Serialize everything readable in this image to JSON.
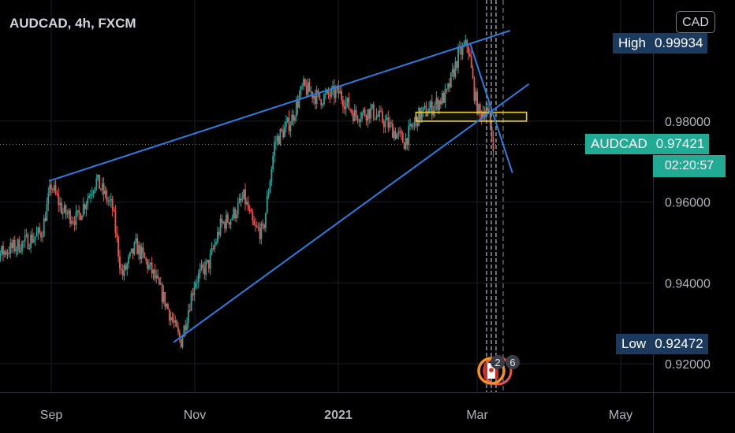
{
  "header": {
    "symbol_title": "AUDCAD, 4h, FXCM",
    "currency_button": "CAD"
  },
  "price_tags": {
    "high": {
      "label": "High",
      "value": "0.99934"
    },
    "low": {
      "label": "Low",
      "value": "0.92472"
    },
    "current": {
      "label": "AUDCAD",
      "value": "0.97421",
      "countdown": "02:20:57"
    }
  },
  "events": {
    "count_badge": "2",
    "count_badge_2": "6"
  },
  "colors": {
    "background": "#000000",
    "up": "#26a69a",
    "down": "#ef5350",
    "trendline": "#2a7de1",
    "zone": "#f5d030",
    "price_line": "#22ab94"
  },
  "chart_data": {
    "type": "candlestick",
    "symbol": "AUDCAD",
    "timeframe": "4h",
    "source": "FXCM",
    "x_ticks": [
      "Sep",
      "Nov",
      "2021",
      "Mar",
      "May"
    ],
    "y_ticks": [
      "0.92000",
      "0.94000",
      "0.96000",
      "0.98000"
    ],
    "ylim": [
      0.9135,
      1.0045
    ],
    "grid": true,
    "last_price": 0.97421,
    "high": 0.99934,
    "low": 0.92472,
    "close_path": [
      {
        "date": "2020-08-01",
        "price": 0.9515
      },
      {
        "date": "2020-08-10",
        "price": 0.9472
      },
      {
        "date": "2020-08-20",
        "price": 0.9498
      },
      {
        "date": "2020-08-28",
        "price": 0.9525
      },
      {
        "date": "2020-09-01",
        "price": 0.9642
      },
      {
        "date": "2020-09-06",
        "price": 0.9575
      },
      {
        "date": "2020-09-12",
        "price": 0.9558
      },
      {
        "date": "2020-09-20",
        "price": 0.9655
      },
      {
        "date": "2020-09-27",
        "price": 0.9585
      },
      {
        "date": "2020-10-01",
        "price": 0.9415
      },
      {
        "date": "2020-10-07",
        "price": 0.9492
      },
      {
        "date": "2020-10-14",
        "price": 0.9425
      },
      {
        "date": "2020-10-20",
        "price": 0.9345
      },
      {
        "date": "2020-10-26",
        "price": 0.9252
      },
      {
        "date": "2020-11-01",
        "price": 0.9405
      },
      {
        "date": "2020-11-07",
        "price": 0.9448
      },
      {
        "date": "2020-11-12",
        "price": 0.9542
      },
      {
        "date": "2020-11-17",
        "price": 0.9565
      },
      {
        "date": "2020-11-22",
        "price": 0.9612
      },
      {
        "date": "2020-11-26",
        "price": 0.9535
      },
      {
        "date": "2020-11-30",
        "price": 0.9525
      },
      {
        "date": "2020-12-05",
        "price": 0.9748
      },
      {
        "date": "2020-12-12",
        "price": 0.9802
      },
      {
        "date": "2020-12-17",
        "price": 0.9885
      },
      {
        "date": "2020-12-24",
        "price": 0.9855
      },
      {
        "date": "2021-01-01",
        "price": 0.9872
      },
      {
        "date": "2021-01-08",
        "price": 0.9815
      },
      {
        "date": "2021-01-15",
        "price": 0.9825
      },
      {
        "date": "2021-01-22",
        "price": 0.9792
      },
      {
        "date": "2021-01-29",
        "price": 0.9748
      },
      {
        "date": "2021-02-04",
        "price": 0.9812
      },
      {
        "date": "2021-02-10",
        "price": 0.9835
      },
      {
        "date": "2021-02-16",
        "price": 0.9865
      },
      {
        "date": "2021-02-21",
        "price": 0.9962
      },
      {
        "date": "2021-02-25",
        "price": 0.9992
      },
      {
        "date": "2021-02-28",
        "price": 0.9862
      },
      {
        "date": "2021-03-02",
        "price": 0.9815
      },
      {
        "date": "2021-03-05",
        "price": 0.9835
      },
      {
        "date": "2021-03-08",
        "price": 0.9742
      }
    ],
    "drawings": {
      "trendlines": [
        {
          "from": {
            "date": "2020-08-31",
            "price": 0.9652
          },
          "to": {
            "date": "2021-03-15",
            "price": 1.0024
          }
        },
        {
          "from": {
            "date": "2020-10-23",
            "price": 0.9253
          },
          "to": {
            "date": "2021-03-23",
            "price": 0.9892
          }
        },
        {
          "from": {
            "date": "2021-02-26",
            "price": 0.9992
          },
          "to": {
            "date": "2021-03-16",
            "price": 0.9672
          }
        }
      ],
      "zone": {
        "from": "2021-02-03",
        "to": "2021-03-22",
        "price_low": 0.98,
        "price_high": 0.9822
      }
    }
  }
}
